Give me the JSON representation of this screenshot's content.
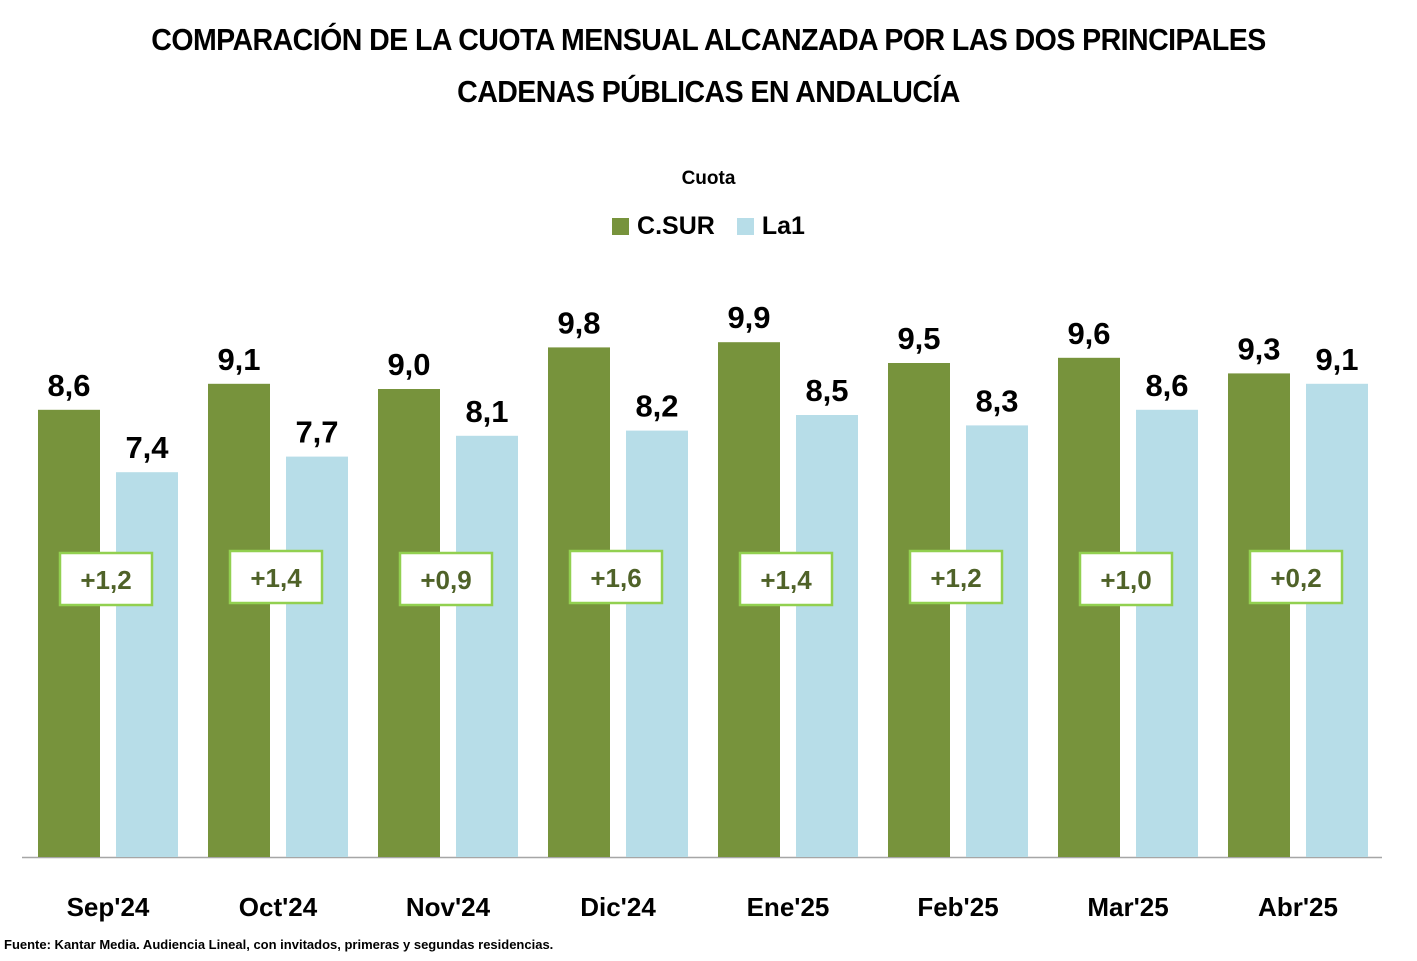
{
  "chart_data": {
    "type": "bar",
    "title": "COMPARACIÓN DE LA CUOTA MENSUAL ALCANZADA POR LAS DOS PRINCIPALES CADENAS PÚBLICAS EN ANDALUCÍA",
    "title_lines": [
      "COMPARACIÓN DE LA CUOTA MENSUAL ALCANZADA POR LAS DOS PRINCIPALES",
      "CADENAS PÚBLICAS EN ANDALUCÍA"
    ],
    "subtitle": "Cuota",
    "xlabel": "",
    "ylabel": "",
    "ylim": [
      0,
      10.5
    ],
    "grid": false,
    "legend_position": "top-center",
    "categories": [
      "Sep'24",
      "Oct'24",
      "Nov'24",
      "Dic'24",
      "Ene'25",
      "Feb'25",
      "Mar'25",
      "Abr'25"
    ],
    "series": [
      {
        "name": "C.SUR",
        "color": "#77933C",
        "values": [
          8.6,
          9.1,
          9.0,
          9.8,
          9.9,
          9.5,
          9.6,
          9.3
        ],
        "labels": [
          "8,6",
          "9,1",
          "9,0",
          "9,8",
          "9,9",
          "9,5",
          "9,6",
          "9,3"
        ]
      },
      {
        "name": "La1",
        "color": "#B7DDE8",
        "values": [
          7.4,
          7.7,
          8.1,
          8.2,
          8.5,
          8.3,
          8.6,
          9.1
        ],
        "labels": [
          "7,4",
          "7,7",
          "8,1",
          "8,2",
          "8,5",
          "8,3",
          "8,6",
          "9,1"
        ]
      }
    ],
    "differences": {
      "values": [
        1.2,
        1.4,
        0.9,
        1.6,
        1.4,
        1.2,
        1.0,
        0.2
      ],
      "labels": [
        "+1,2",
        "+1,4",
        "+0,9",
        "+1,6",
        "+1,4",
        "+1,2",
        "+1,0",
        "+0,2"
      ],
      "text_color": "#4F6228",
      "border_color": "#92D050"
    },
    "source": "Fuente: Kantar Media. Audiencia Lineal, con invitados, primeras y segundas residencias."
  }
}
